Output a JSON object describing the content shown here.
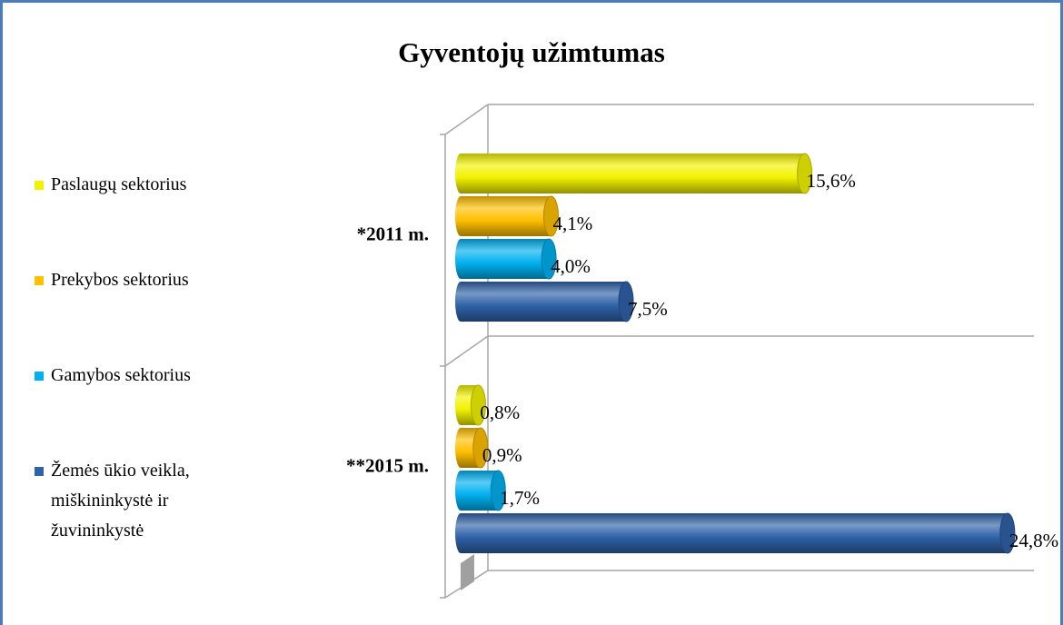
{
  "chart_data": {
    "type": "bar3d_horizontal",
    "title": "Gyventojų užimtumas",
    "categories": [
      "*2011 m.",
      "**2015 m."
    ],
    "xlim": [
      0,
      26
    ],
    "series": [
      {
        "name": "Paslaugų sektorius",
        "color": "#f2f200",
        "values": [
          15.6,
          0.8
        ],
        "value_labels": [
          "15,6%",
          "0,8%"
        ]
      },
      {
        "name": "Prekybos sektorius",
        "color": "#ffc000",
        "values": [
          4.1,
          0.9
        ],
        "value_labels": [
          "4,1%",
          "0,9%"
        ]
      },
      {
        "name": "Gamybos sektorius",
        "color": "#00b0f0",
        "values": [
          4.0,
          1.7
        ],
        "value_labels": [
          "4,0%",
          "1,7%"
        ]
      },
      {
        "name": "Žemės ūkio veikla, miškininkystė ir žuvininkystė",
        "color": "#2f62a8",
        "values": [
          7.5,
          24.8
        ],
        "value_labels": [
          "7,5%",
          "24,8%"
        ]
      }
    ]
  }
}
